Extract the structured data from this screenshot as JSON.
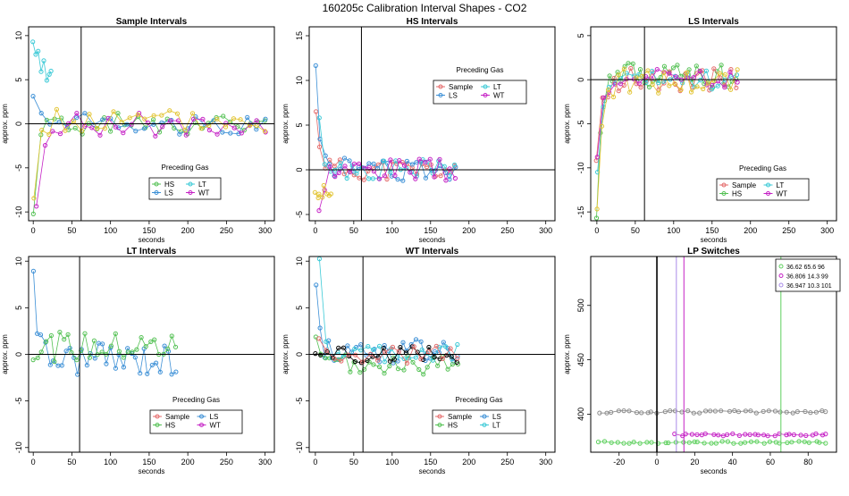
{
  "figure_title": "160205c   Calibration Interval Shapes - CO2",
  "colors": {
    "HS": "#54c154",
    "LS": "#3b8fd6",
    "LT": "#3ac9d6",
    "WT": "#c521c5",
    "Sample": "#e46a6a",
    "yellow": "#e2c433",
    "black": "#000000",
    "gray": "#8a8a8a",
    "green_lp": "#5fd05f",
    "magenta_lp": "#c521c5",
    "violet_lp": "#a98be8"
  },
  "chart_data": [
    {
      "id": "sample",
      "type": "scatter",
      "title": "Sample Intervals",
      "xlabel": "seconds",
      "ylabel": "approx. ppm",
      "xlim": [
        -6,
        312
      ],
      "ylim": [
        -11,
        11
      ],
      "xticks": [
        0,
        50,
        100,
        150,
        200,
        250,
        300
      ],
      "yticks": [
        -10,
        -5,
        0,
        5,
        10
      ],
      "hline": 0,
      "vline": 62,
      "legend": {
        "title": "Preceding Gas",
        "position": "center",
        "entries": [
          "HS",
          "LT",
          "LS",
          "WT"
        ]
      },
      "series": [
        {
          "name": "HS",
          "n": 34,
          "x0": 0,
          "x1": 300,
          "base": 0,
          "amp": 1.2,
          "start": -10,
          "decay": 6,
          "seed": 1
        },
        {
          "name": "LS",
          "n": 28,
          "x0": 0,
          "x1": 300,
          "base": 0,
          "amp": 1.2,
          "start": 4,
          "decay": 6,
          "seed": 2
        },
        {
          "name": "LT",
          "n": 8,
          "x0": 0,
          "x1": 24,
          "base": 2,
          "amp": 1.5,
          "start": 8,
          "decay": 30,
          "seed": 3
        },
        {
          "name": "WT",
          "n": 30,
          "x0": 5,
          "x1": 300,
          "base": 0,
          "amp": 1.4,
          "start": -10,
          "decay": 8,
          "seed": 4
        },
        {
          "name": "yellow",
          "n": 30,
          "x0": 0,
          "x1": 300,
          "base": 0.3,
          "amp": 1.4,
          "start": -10,
          "decay": 5,
          "seed": 5
        }
      ]
    },
    {
      "id": "hs",
      "type": "scatter",
      "title": "HS Intervals",
      "xlabel": "seconds",
      "ylabel": "approx. ppm",
      "xlim": [
        -8,
        312
      ],
      "ylim": [
        -5.7,
        16
      ],
      "xticks": [
        0,
        50,
        100,
        150,
        200,
        250,
        300
      ],
      "yticks": [
        -5,
        0,
        5,
        10,
        15
      ],
      "hline": 0,
      "vline": 60,
      "legend": {
        "title": "Preceding Gas",
        "position": "top-center",
        "entries": [
          "Sample",
          "LT",
          "LS",
          "WT"
        ]
      },
      "series": [
        {
          "name": "Sample",
          "n": 30,
          "x0": 0,
          "x1": 182,
          "base": 0,
          "amp": 1.2,
          "start": 8,
          "decay": 6,
          "seed": 11
        },
        {
          "name": "LS",
          "n": 30,
          "x0": 0,
          "x1": 182,
          "base": 0,
          "amp": 1.3,
          "start": 14,
          "decay": 5,
          "seed": 12
        },
        {
          "name": "LT",
          "n": 26,
          "x0": 5,
          "x1": 182,
          "base": 0,
          "amp": 1.2,
          "start": 5,
          "decay": 6,
          "seed": 13
        },
        {
          "name": "WT",
          "n": 28,
          "x0": 5,
          "x1": 182,
          "base": 0,
          "amp": 1.2,
          "start": -5,
          "decay": 5,
          "seed": 14
        },
        {
          "name": "yellow",
          "n": 8,
          "x0": 0,
          "x1": 20,
          "base": -2,
          "amp": 0.7,
          "start": -2.5,
          "decay": 40,
          "seed": 15
        }
      ]
    },
    {
      "id": "ls",
      "type": "scatter",
      "title": "LS Intervals",
      "xlabel": "seconds",
      "ylabel": "approx. ppm",
      "xlim": [
        -8,
        312
      ],
      "ylim": [
        -16,
        6
      ],
      "xticks": [
        0,
        50,
        100,
        150,
        200,
        250,
        300
      ],
      "yticks": [
        -15,
        -10,
        -5,
        0,
        5
      ],
      "hline": 0,
      "vline": 62,
      "legend": {
        "title": "Preceding Gas",
        "position": "bottom-center",
        "entries": [
          "Sample",
          "LT",
          "HS",
          "WT"
        ]
      },
      "series": [
        {
          "name": "HS",
          "n": 36,
          "x0": 0,
          "x1": 182,
          "base": 0.5,
          "amp": 1.4,
          "start": -15,
          "decay": 6,
          "seed": 21
        },
        {
          "name": "Sample",
          "n": 26,
          "x0": 0,
          "x1": 182,
          "base": 0,
          "amp": 1.3,
          "start": -8,
          "decay": 6,
          "seed": 22
        },
        {
          "name": "LT",
          "n": 24,
          "x0": 0,
          "x1": 182,
          "base": 0,
          "amp": 1.1,
          "start": -13,
          "decay": 6,
          "seed": 23
        },
        {
          "name": "WT",
          "n": 24,
          "x0": 0,
          "x1": 182,
          "base": 0.3,
          "amp": 1.2,
          "start": -10,
          "decay": 6,
          "seed": 24
        },
        {
          "name": "yellow",
          "n": 26,
          "x0": 0,
          "x1": 182,
          "base": -0.2,
          "amp": 1.5,
          "start": -15,
          "decay": 6,
          "seed": 25
        }
      ]
    },
    {
      "id": "lt",
      "type": "scatter",
      "title": "LT Intervals",
      "xlabel": "seconds",
      "ylabel": "approx. ppm",
      "xlim": [
        -6,
        312
      ],
      "ylim": [
        -10.5,
        10.5
      ],
      "xticks": [
        0,
        50,
        100,
        150,
        200,
        250,
        300
      ],
      "yticks": [
        -10,
        -5,
        0,
        5,
        10
      ],
      "hline": 0,
      "vline": 60,
      "legend": {
        "title": "Preceding Gas",
        "position": "bottom-center",
        "entries": [
          "Sample",
          "LS",
          "HS",
          "WT"
        ]
      },
      "series": [
        {
          "name": "LS",
          "n": 36,
          "x0": 0,
          "x1": 185,
          "base": -0.5,
          "amp": 1.8,
          "start": 10.5,
          "decay": 5,
          "seed": 31
        },
        {
          "name": "HS",
          "n": 34,
          "x0": 0,
          "x1": 185,
          "base": 0.8,
          "amp": 1.6,
          "start": 1,
          "decay": 10,
          "seed": 32
        }
      ]
    },
    {
      "id": "wt",
      "type": "scatter",
      "title": "WT Intervals",
      "xlabel": "seconds",
      "ylabel": "approx. ppm",
      "xlim": [
        -8,
        312
      ],
      "ylim": [
        -10.5,
        10.5
      ],
      "xticks": [
        0,
        50,
        100,
        150,
        200,
        250,
        300
      ],
      "yticks": [
        -10,
        -5,
        0,
        5,
        10
      ],
      "hline": 0,
      "vline": 62,
      "legend": {
        "title": "Preceding Gas",
        "position": "bottom-center",
        "entries": [
          "Sample",
          "LS",
          "HS",
          "LT"
        ]
      },
      "series": [
        {
          "name": "LS",
          "n": 32,
          "x0": 0,
          "x1": 185,
          "base": 0.3,
          "amp": 1.3,
          "start": 10.5,
          "decay": 4,
          "seed": 41
        },
        {
          "name": "HS",
          "n": 30,
          "x0": 0,
          "x1": 185,
          "base": -1.2,
          "amp": 1.1,
          "start": 1,
          "decay": 10,
          "seed": 42
        },
        {
          "name": "LT",
          "n": 24,
          "x0": 5,
          "x1": 185,
          "base": 0.2,
          "amp": 1.0,
          "start": 10.5,
          "decay": 4,
          "seed": 43
        },
        {
          "name": "black",
          "n": 26,
          "x0": 0,
          "x1": 185,
          "base": 0,
          "amp": 0.9,
          "start": 0,
          "decay": 10,
          "seed": 44
        },
        {
          "name": "Sample",
          "n": 20,
          "x0": 5,
          "x1": 185,
          "base": 0,
          "amp": 1.0,
          "start": 2,
          "decay": 8,
          "seed": 45
        }
      ]
    },
    {
      "id": "lp",
      "type": "scatter",
      "title": "LP Switches",
      "xlabel": "seconds",
      "ylabel": "approx. ppm",
      "xlim": [
        -35,
        95
      ],
      "ylim": [
        365,
        545
      ],
      "xticks": [
        -20,
        0,
        20,
        40,
        60,
        80
      ],
      "yticks": [
        400,
        450,
        500
      ],
      "vline_black": 0,
      "vlines": [
        {
          "x": 65.6,
          "color": "green_lp"
        },
        {
          "x": 10.3,
          "color": "violet_lp"
        },
        {
          "x": 14.3,
          "color": "magenta_lp"
        }
      ],
      "legend": {
        "position": "top-right",
        "entries": [
          "36.62 65.6 96",
          "36.806 14.3 99",
          "36.947 10.3 101"
        ]
      },
      "series": [
        {
          "name": "gray",
          "n": 40,
          "x0": -30,
          "x1": 90,
          "base": 402,
          "amp": 1.2,
          "seed": 51
        },
        {
          "name": "magenta_lp",
          "n": 30,
          "x0": 10,
          "x1": 90,
          "base": 381,
          "amp": 1.0,
          "seed": 52
        },
        {
          "name": "green_lp",
          "n": 40,
          "x0": -30,
          "x1": 90,
          "base": 374,
          "amp": 1.0,
          "seed": 53
        }
      ]
    }
  ]
}
